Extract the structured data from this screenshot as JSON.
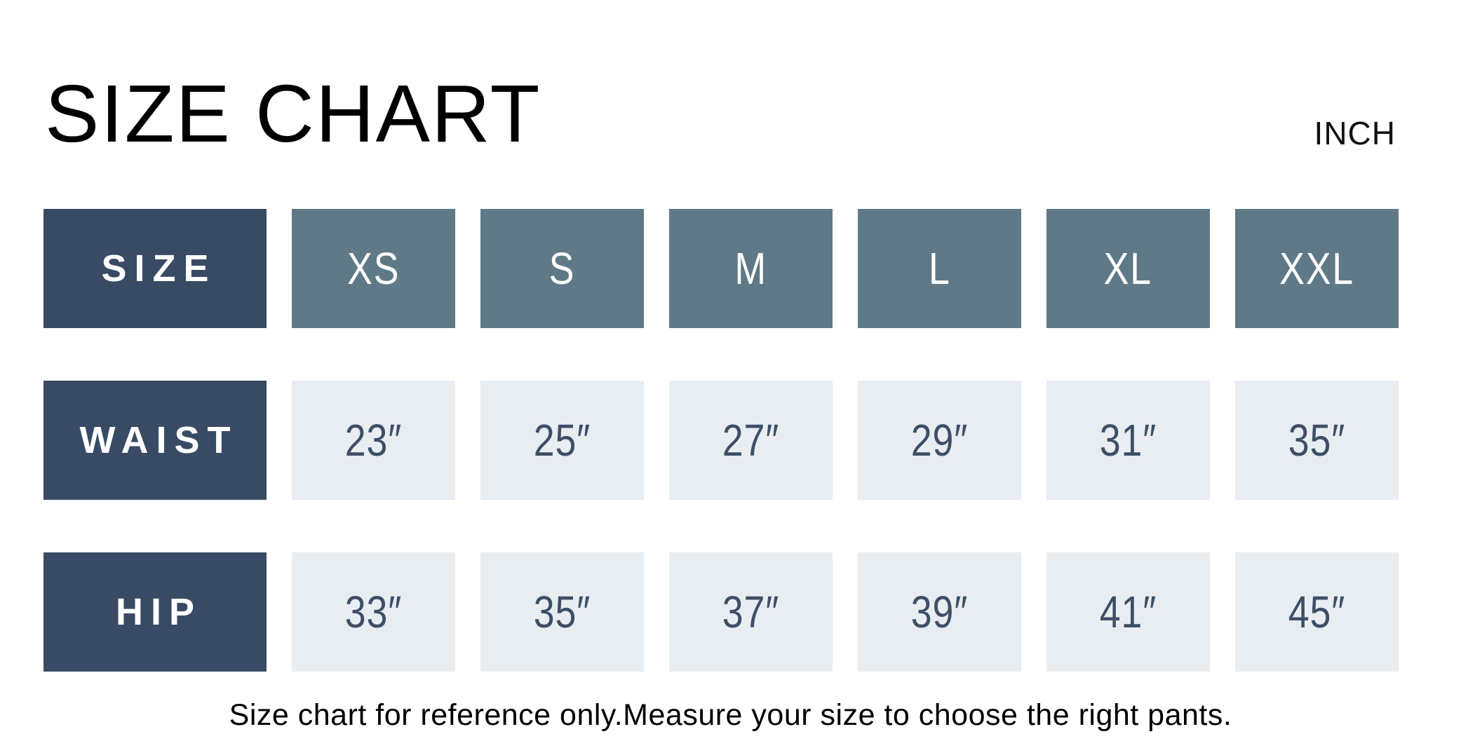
{
  "page": {
    "background_color": "#ffffff"
  },
  "chart_data": {
    "type": "table",
    "title": "SIZE CHART",
    "unit": "INCH",
    "corner_label": "SIZE",
    "size_columns": [
      "XS",
      "S",
      "M",
      "L",
      "XL",
      "XXL"
    ],
    "columns": [
      "SIZE",
      "XS",
      "S",
      "M",
      "L",
      "XL",
      "XXL"
    ],
    "rows": [
      {
        "label": "WAIST",
        "values": [
          "23″",
          "25″",
          "27″",
          "29″",
          "31″",
          "35″"
        ],
        "values_numeric_inch": [
          23,
          25,
          27,
          29,
          31,
          35
        ]
      },
      {
        "label": "HIP",
        "values": [
          "33″",
          "35″",
          "37″",
          "39″",
          "41″",
          "45″"
        ],
        "values_numeric_inch": [
          33,
          35,
          37,
          39,
          41,
          45
        ]
      }
    ],
    "footnote": "Size chart for reference only.Measure your size to choose the right pants."
  },
  "colors": {
    "row_label_bg": "#394a64",
    "size_header_bg": "#5f7987",
    "value_cell_bg": "#e8edf2",
    "value_text": "#3d4f66",
    "header_text": "#ffffff",
    "title_text": "#000000"
  }
}
